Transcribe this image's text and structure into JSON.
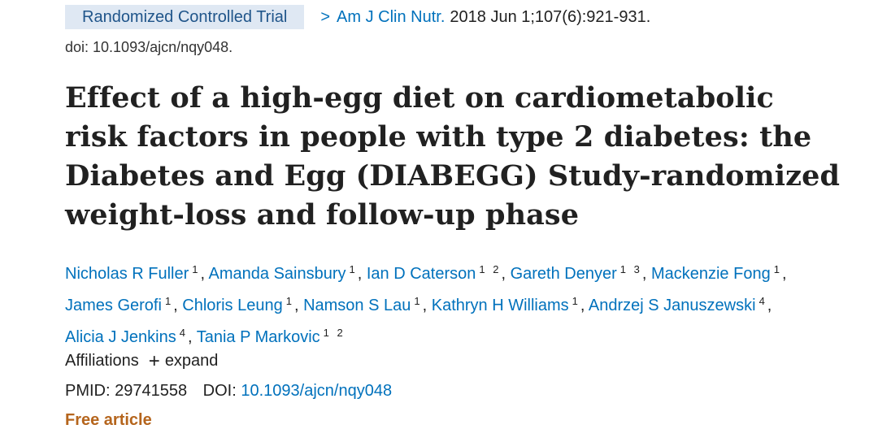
{
  "header": {
    "article_type": "Randomized Controlled Trial",
    "chevron": ">",
    "journal": "Am J Clin Nutr.",
    "citation": "2018 Jun 1;107(6):921-931.",
    "doi_line": "doi: 10.1093/ajcn/nqy048."
  },
  "title": "Effect of a high-egg diet on cardiometabolic risk factors in people with type 2 diabetes: the Diabetes and Egg (DIABEGG) Study-randomized weight-loss and follow-up phase",
  "authors": [
    {
      "name": "Nicholas R Fuller",
      "aff": "1"
    },
    {
      "name": "Amanda Sainsbury",
      "aff": "1"
    },
    {
      "name": "Ian D Caterson",
      "aff": "1 2"
    },
    {
      "name": "Gareth Denyer",
      "aff": "1 3"
    },
    {
      "name": "Mackenzie Fong",
      "aff": "1"
    },
    {
      "name": "James Gerofi",
      "aff": "1"
    },
    {
      "name": "Chloris Leung",
      "aff": "1"
    },
    {
      "name": "Namson S Lau",
      "aff": "1"
    },
    {
      "name": "Kathryn H Williams",
      "aff": "1"
    },
    {
      "name": "Andrzej S Januszewski",
      "aff": "4"
    },
    {
      "name": "Alicia J Jenkins",
      "aff": "4"
    },
    {
      "name": "Tania P Markovic",
      "aff": "1 2"
    }
  ],
  "affiliations": {
    "label": "Affiliations",
    "expand_label": "expand",
    "icon": "plus-icon"
  },
  "ids": {
    "pmid_label": "PMID:",
    "pmid": "29741558",
    "doi_label": "DOI:",
    "doi": "10.1093/ajcn/nqy048"
  },
  "free_article": "Free article",
  "colors": {
    "link": "#0071bc",
    "badge_bg": "#dfe8f3",
    "badge_text": "#20558a",
    "free": "#b5651d"
  }
}
